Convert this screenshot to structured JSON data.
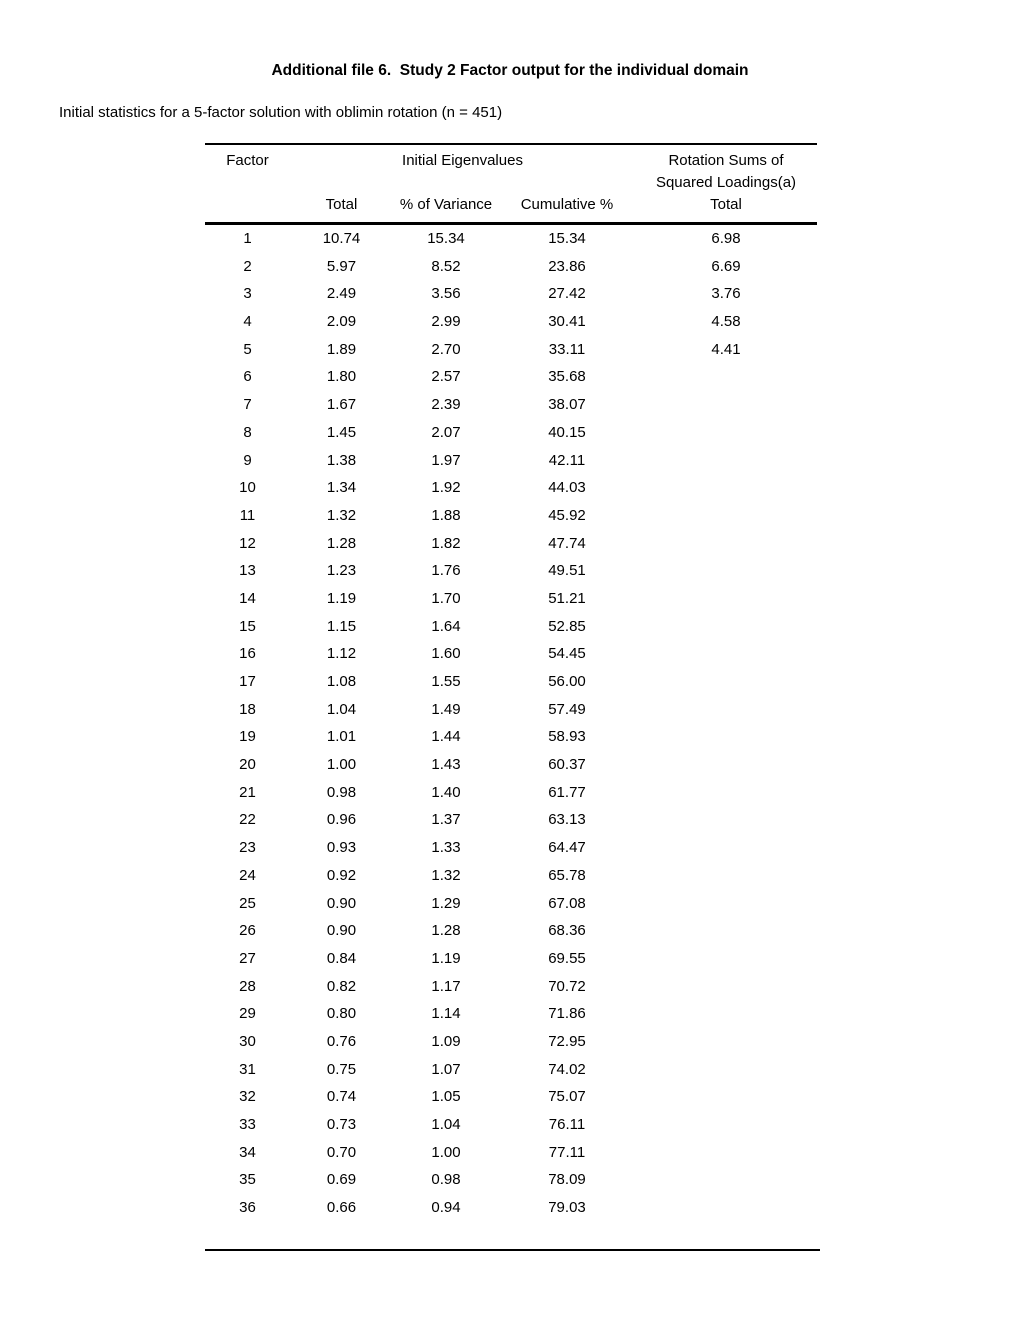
{
  "page": {
    "title": "Additional file 6.  Study 2 Factor output for the individual domain",
    "subtitle": "Initial statistics for a 5-factor solution with oblimin rotation (n = 451)"
  },
  "table": {
    "headers": {
      "factor": "Factor",
      "initial_eigenvalues": "Initial Eigenvalues",
      "rotation_sums_line1": "Rotation Sums of",
      "rotation_sums_line2": "Squared Loadings(a)",
      "total": "Total",
      "pct_of_variance": "% of Variance",
      "cumulative_pct": "Cumulative %",
      "rotation_total": "Total"
    },
    "column_order": [
      "factor",
      "total",
      "pct_of_variance",
      "cumulative_pct",
      "rotation_total"
    ],
    "rows": [
      [
        "1",
        "10.74",
        "15.34",
        "15.34",
        "6.98"
      ],
      [
        "2",
        "5.97",
        "8.52",
        "23.86",
        "6.69"
      ],
      [
        "3",
        "2.49",
        "3.56",
        "27.42",
        "3.76"
      ],
      [
        "4",
        "2.09",
        "2.99",
        "30.41",
        "4.58"
      ],
      [
        "5",
        "1.89",
        "2.70",
        "33.11",
        "4.41"
      ],
      [
        "6",
        "1.80",
        "2.57",
        "35.68",
        ""
      ],
      [
        "7",
        "1.67",
        "2.39",
        "38.07",
        ""
      ],
      [
        "8",
        "1.45",
        "2.07",
        "40.15",
        ""
      ],
      [
        "9",
        "1.38",
        "1.97",
        "42.11",
        ""
      ],
      [
        "10",
        "1.34",
        "1.92",
        "44.03",
        ""
      ],
      [
        "11",
        "1.32",
        "1.88",
        "45.92",
        ""
      ],
      [
        "12",
        "1.28",
        "1.82",
        "47.74",
        ""
      ],
      [
        "13",
        "1.23",
        "1.76",
        "49.51",
        ""
      ],
      [
        "14",
        "1.19",
        "1.70",
        "51.21",
        ""
      ],
      [
        "15",
        "1.15",
        "1.64",
        "52.85",
        ""
      ],
      [
        "16",
        "1.12",
        "1.60",
        "54.45",
        ""
      ],
      [
        "17",
        "1.08",
        "1.55",
        "56.00",
        ""
      ],
      [
        "18",
        "1.04",
        "1.49",
        "57.49",
        ""
      ],
      [
        "19",
        "1.01",
        "1.44",
        "58.93",
        ""
      ],
      [
        "20",
        "1.00",
        "1.43",
        "60.37",
        ""
      ],
      [
        "21",
        "0.98",
        "1.40",
        "61.77",
        ""
      ],
      [
        "22",
        "0.96",
        "1.37",
        "63.13",
        ""
      ],
      [
        "23",
        "0.93",
        "1.33",
        "64.47",
        ""
      ],
      [
        "24",
        "0.92",
        "1.32",
        "65.78",
        ""
      ],
      [
        "25",
        "0.90",
        "1.29",
        "67.08",
        ""
      ],
      [
        "26",
        "0.90",
        "1.28",
        "68.36",
        ""
      ],
      [
        "27",
        "0.84",
        "1.19",
        "69.55",
        ""
      ],
      [
        "28",
        "0.82",
        "1.17",
        "70.72",
        ""
      ],
      [
        "29",
        "0.80",
        "1.14",
        "71.86",
        ""
      ],
      [
        "30",
        "0.76",
        "1.09",
        "72.95",
        ""
      ],
      [
        "31",
        "0.75",
        "1.07",
        "74.02",
        ""
      ],
      [
        "32",
        "0.74",
        "1.05",
        "75.07",
        ""
      ],
      [
        "33",
        "0.73",
        "1.04",
        "76.11",
        ""
      ],
      [
        "34",
        "0.70",
        "1.00",
        "77.11",
        ""
      ],
      [
        "35",
        "0.69",
        "0.98",
        "78.09",
        ""
      ],
      [
        "36",
        "0.66",
        "0.94",
        "79.03",
        ""
      ]
    ]
  }
}
